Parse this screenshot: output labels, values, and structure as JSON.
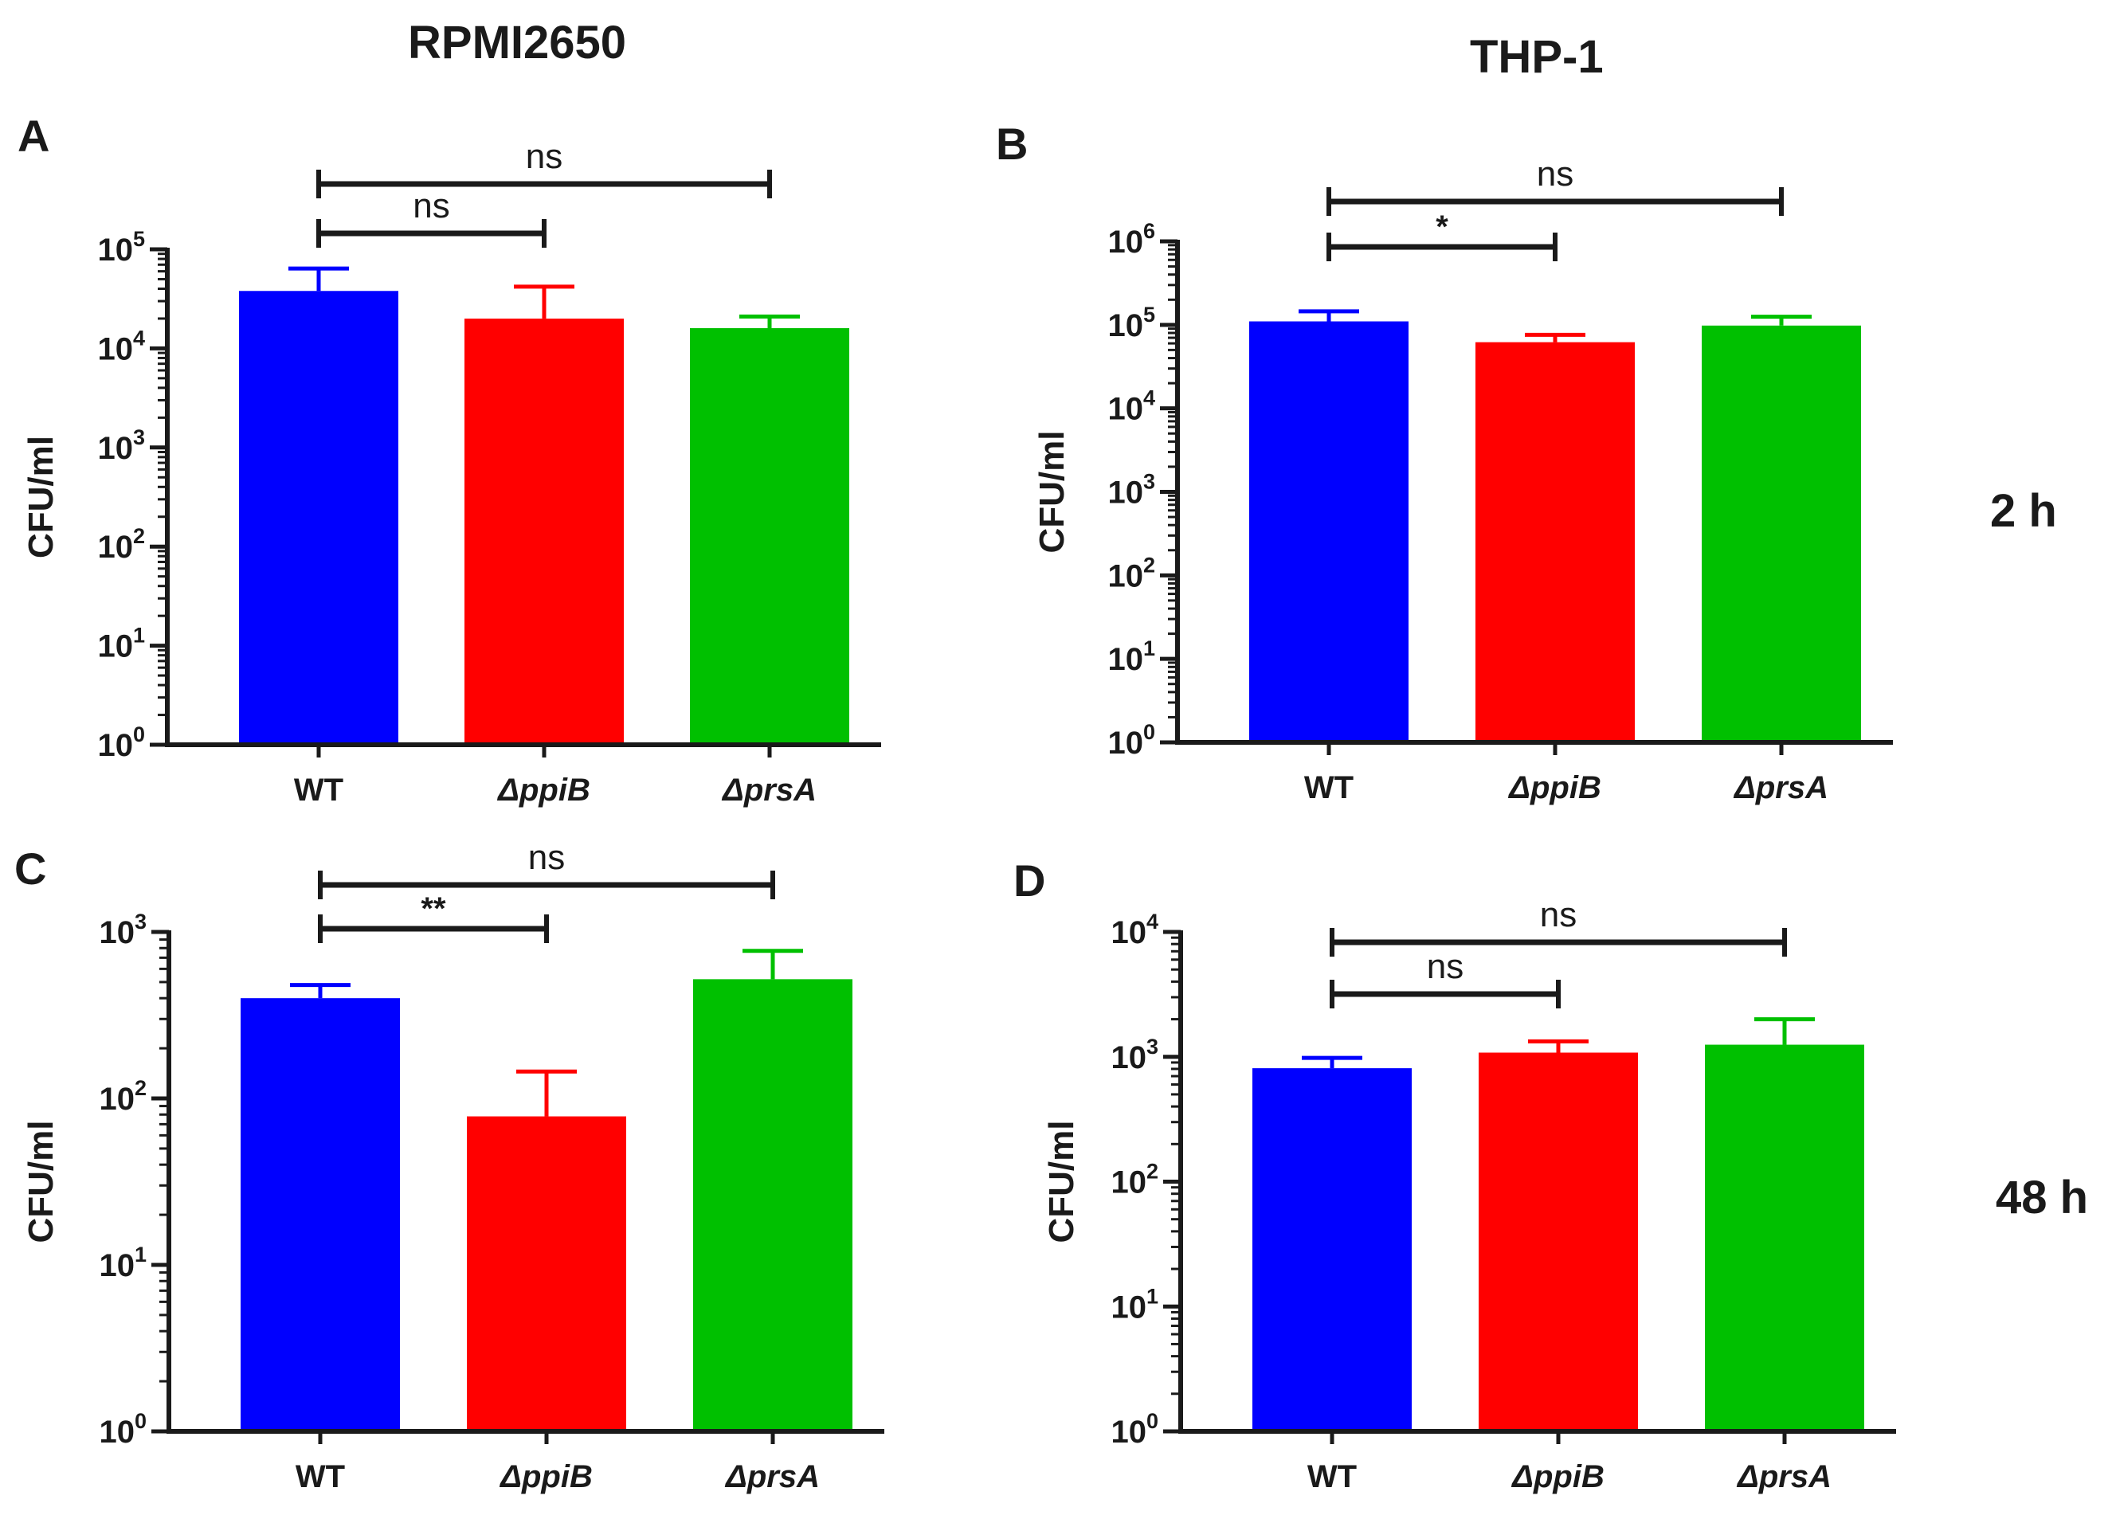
{
  "column_titles": [
    "RPMI2650",
    "THP-1"
  ],
  "row_labels": [
    "2 h",
    "48 h"
  ],
  "colors": {
    "WT": "#0000ff",
    "ppiB": "#ff0000",
    "prsA": "#00c000",
    "axis": "#1a1a1a"
  },
  "chart_data": [
    {
      "panel": "A",
      "type": "bar",
      "scale": "log10",
      "title": "RPMI2650",
      "time": "2 h",
      "xlabel": "",
      "ylabel": "CFU/ml",
      "ylim": [
        1,
        100000
      ],
      "ytick_exponents": [
        0,
        1,
        2,
        3,
        4,
        5
      ],
      "categories": [
        "WT",
        "ΔppiB",
        "ΔprsA"
      ],
      "values": [
        38000,
        20000,
        16000
      ],
      "error_upper": [
        64000,
        42000,
        21000
      ],
      "significance": [
        {
          "from": "WT",
          "to": "ΔppiB",
          "label": "ns"
        },
        {
          "from": "WT",
          "to": "ΔprsA",
          "label": "ns"
        }
      ]
    },
    {
      "panel": "B",
      "type": "bar",
      "scale": "log10",
      "title": "THP-1",
      "time": "2 h",
      "xlabel": "",
      "ylabel": "CFU/ml",
      "ylim": [
        1,
        1000000
      ],
      "ytick_exponents": [
        0,
        1,
        2,
        3,
        4,
        5,
        6
      ],
      "categories": [
        "WT",
        "ΔppiB",
        "ΔprsA"
      ],
      "values": [
        110000,
        62000,
        98000
      ],
      "error_upper": [
        145000,
        76000,
        125000
      ],
      "significance": [
        {
          "from": "WT",
          "to": "ΔppiB",
          "label": "*"
        },
        {
          "from": "WT",
          "to": "ΔprsA",
          "label": "ns"
        }
      ]
    },
    {
      "panel": "C",
      "type": "bar",
      "scale": "log10",
      "title": "RPMI2650",
      "time": "48 h",
      "xlabel": "",
      "ylabel": "CFU/ml",
      "ylim": [
        1,
        1000
      ],
      "ytick_exponents": [
        0,
        1,
        2,
        3
      ],
      "categories": [
        "WT",
        "ΔppiB",
        "ΔprsA"
      ],
      "values": [
        400,
        78,
        520
      ],
      "error_upper": [
        480,
        145,
        770
      ],
      "significance": [
        {
          "from": "WT",
          "to": "ΔppiB",
          "label": "**"
        },
        {
          "from": "WT",
          "to": "ΔprsA",
          "label": "ns"
        }
      ]
    },
    {
      "panel": "D",
      "type": "bar",
      "scale": "log10",
      "title": "THP-1",
      "time": "48 h",
      "xlabel": "",
      "ylabel": "CFU/ml",
      "ylim": [
        1,
        10000
      ],
      "ytick_exponents": [
        0,
        1,
        2,
        3,
        4
      ],
      "categories": [
        "WT",
        "ΔppiB",
        "ΔprsA"
      ],
      "values": [
        810,
        1080,
        1250
      ],
      "error_upper": [
        980,
        1330,
        2000
      ],
      "significance": [
        {
          "from": "WT",
          "to": "ΔppiB",
          "label": "ns"
        },
        {
          "from": "WT",
          "to": "ΔprsA",
          "label": "ns"
        }
      ]
    }
  ]
}
